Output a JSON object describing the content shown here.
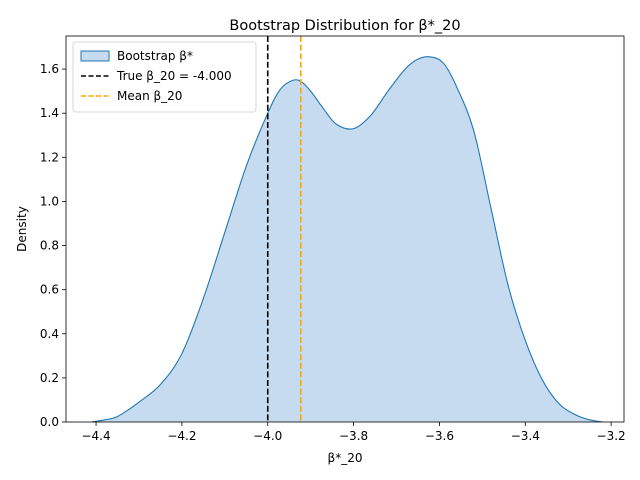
{
  "chart_data": {
    "type": "area",
    "title": "Bootstrap Distribution for β*_20",
    "xlabel": "β*_20",
    "ylabel": "Density",
    "xlim": [
      -4.47,
      -3.17
    ],
    "ylim": [
      0,
      1.75
    ],
    "x_ticks": [
      -4.4,
      -4.2,
      -4.0,
      -3.8,
      -3.6,
      -3.4,
      -3.2
    ],
    "x_tick_labels": [
      "−4.4",
      "−4.2",
      "−4.0",
      "−3.8",
      "−3.6",
      "−3.4",
      "−3.2"
    ],
    "y_ticks": [
      0.0,
      0.2,
      0.4,
      0.6,
      0.8,
      1.0,
      1.2,
      1.4,
      1.6
    ],
    "y_tick_labels": [
      "0.0",
      "0.2",
      "0.4",
      "0.6",
      "0.8",
      "1.0",
      "1.2",
      "1.4",
      "1.6"
    ],
    "grid": false,
    "legend_position": "top-left",
    "series": [
      {
        "name": "Bootstrap β*",
        "kind": "kde-fill",
        "fill": "#c6dbef",
        "line": "#1f77b4",
        "x": [
          -4.41,
          -4.38,
          -4.35,
          -4.3,
          -4.25,
          -4.2,
          -4.15,
          -4.1,
          -4.05,
          -4.0,
          -3.97,
          -3.94,
          -3.92,
          -3.9,
          -3.87,
          -3.84,
          -3.8,
          -3.76,
          -3.72,
          -3.68,
          -3.65,
          -3.62,
          -3.59,
          -3.56,
          -3.52,
          -3.48,
          -3.44,
          -3.4,
          -3.36,
          -3.32,
          -3.28,
          -3.25,
          -3.22
        ],
        "y": [
          0.0,
          0.01,
          0.025,
          0.09,
          0.17,
          0.31,
          0.56,
          0.86,
          1.16,
          1.4,
          1.51,
          1.55,
          1.54,
          1.5,
          1.42,
          1.35,
          1.33,
          1.39,
          1.5,
          1.6,
          1.645,
          1.655,
          1.625,
          1.52,
          1.32,
          0.97,
          0.62,
          0.37,
          0.19,
          0.08,
          0.03,
          0.01,
          0.0
        ]
      },
      {
        "name": "True β_20 = -4.000",
        "kind": "vline",
        "value": -4.0,
        "color": "#000000",
        "dash": "dashed"
      },
      {
        "name": "Mean β_20",
        "kind": "vline",
        "value": -3.923,
        "color": "#ffa500",
        "dash": "dashed"
      }
    ]
  }
}
